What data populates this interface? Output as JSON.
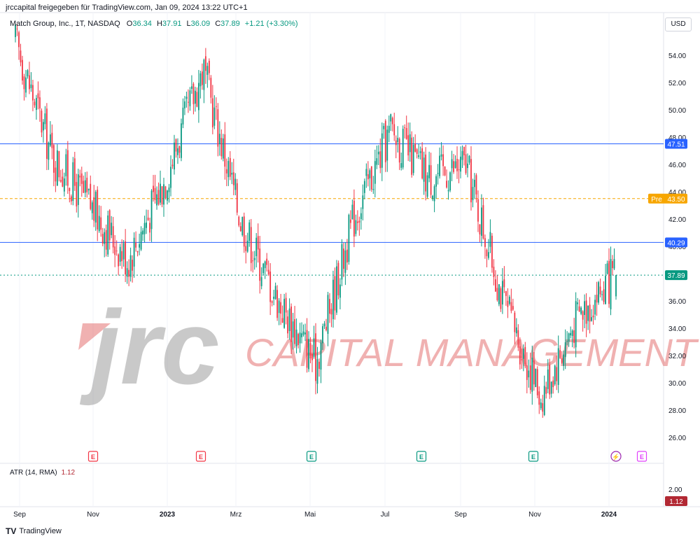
{
  "header": {
    "credit": "jrccapital freigegeben für TradingView.com, Jan 09, 2024 13:22 UTC+1"
  },
  "legend": {
    "symbol": "Match Group, Inc., 1T, NASDAQ",
    "open_label": "O",
    "open": "36.34",
    "high_label": "H",
    "high": "37.91",
    "low_label": "L",
    "low": "36.09",
    "close_label": "C",
    "close": "37.89",
    "change": "+1.21 (+3.30%)"
  },
  "currency_button": "USD",
  "atr": {
    "label": "ATR (14, RMA)",
    "value": "1.12",
    "axis_tick": "2.00"
  },
  "footer": {
    "logo": "TV",
    "brand": "TradingView"
  },
  "watermark": {
    "logo_text": "jrc",
    "text": "CAPITAL MANAGEMENT"
  },
  "price_labels": {
    "resistance": "47.51",
    "pre_tag": "Pre",
    "pre_value": "43.50",
    "support": "40.29",
    "last": "37.89",
    "atr_last": "1.12"
  },
  "colors": {
    "up": "#089981",
    "down": "#f23645",
    "line_blue": "#2962ff",
    "pre_orange": "#f7a600",
    "last_green": "#089981",
    "atr_red": "#b22833",
    "earnings_red": "#f23645",
    "earnings_green": "#089981",
    "earnings_purple": "#e040fb"
  },
  "chart_data": {
    "type": "candlestick",
    "title": "",
    "xlabel": "",
    "ylabel": "",
    "ylim": [
      24.8,
      57.2
    ],
    "y_ticks": [
      "26.00",
      "28.00",
      "30.00",
      "32.00",
      "34.00",
      "36.00",
      "38.00",
      "40.00",
      "42.00",
      "44.00",
      "46.00",
      "48.00",
      "50.00",
      "52.00",
      "54.00"
    ],
    "x_ticks": [
      "Sep",
      "Nov",
      "2023",
      "Mrz",
      "Mai",
      "Jul",
      "Sep",
      "Nov",
      "2024"
    ],
    "horizontal_lines": [
      {
        "name": "resistance",
        "value": 47.51,
        "style": "solid"
      },
      {
        "name": "support",
        "value": 40.29,
        "style": "solid"
      },
      {
        "name": "pre-market",
        "value": 43.5,
        "style": "dashed"
      },
      {
        "name": "last",
        "value": 37.89,
        "style": "dotted"
      }
    ],
    "earnings_markers": [
      {
        "label": "E",
        "type": "down"
      },
      {
        "label": "E",
        "type": "down"
      },
      {
        "label": "E",
        "type": "up"
      },
      {
        "label": "E",
        "type": "up"
      },
      {
        "label": "E",
        "type": "up"
      },
      {
        "label": "⚡",
        "type": "flash"
      },
      {
        "label": "E",
        "type": "upcoming"
      }
    ],
    "trend_anchors": [
      {
        "t": "Sep 2022",
        "close": 55.0
      },
      {
        "t": "Oct 2022",
        "close": 46.5
      },
      {
        "t": "Nov 2022",
        "close": 43.0
      },
      {
        "t": "Dec 2022",
        "close": 39.0
      },
      {
        "t": "Jan 2023",
        "close": 45.0
      },
      {
        "t": "Feb 2023",
        "close": 53.0
      },
      {
        "t": "Mar 2023",
        "close": 42.0
      },
      {
        "t": "Apr 2023",
        "close": 36.0
      },
      {
        "t": "May 2023",
        "close": 31.5
      },
      {
        "t": "Jun 2023",
        "close": 42.0
      },
      {
        "t": "Jul 2023",
        "close": 48.5
      },
      {
        "t": "Aug 2023",
        "close": 45.0
      },
      {
        "t": "Sep 2023",
        "close": 46.0
      },
      {
        "t": "Oct 2023",
        "close": 36.0
      },
      {
        "t": "Nov 2023",
        "close": 29.0
      },
      {
        "t": "Dec 2023",
        "close": 35.0
      },
      {
        "t": "Jan 2024",
        "close": 37.89
      }
    ],
    "atr_series": {
      "name": "ATR (14, RMA)",
      "last": 1.12
    }
  }
}
